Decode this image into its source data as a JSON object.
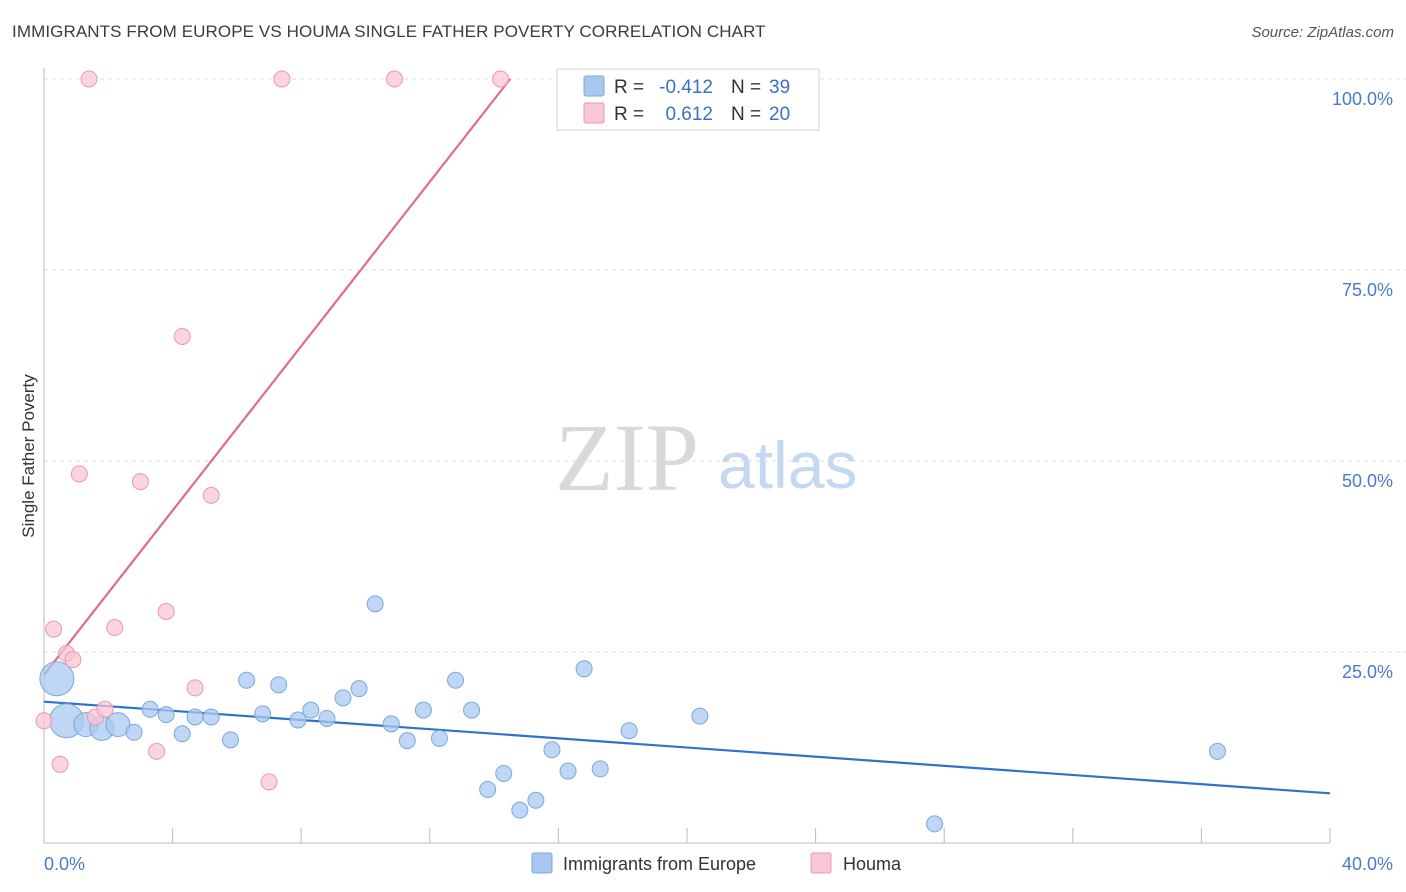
{
  "title": "IMMIGRANTS FROM EUROPE VS HOUMA SINGLE FATHER POVERTY CORRELATION CHART",
  "source": "Source: ZipAtlas.com",
  "watermark": {
    "zip": "ZIP",
    "atlas": "atlas"
  },
  "chart_data": {
    "type": "scatter",
    "title": "IMMIGRANTS FROM EUROPE VS HOUMA SINGLE FATHER POVERTY CORRELATION CHART",
    "xlabel": "",
    "ylabel": "Single Father Poverty",
    "xlim": [
      0,
      40
    ],
    "ylim": [
      0,
      100
    ],
    "x_tick_labels": [
      "0.0%",
      "40.0%"
    ],
    "y_ticks": [
      25,
      50,
      75,
      100
    ],
    "y_tick_labels": [
      "25.0%",
      "50.0%",
      "75.0%",
      "100.0%"
    ],
    "grid": true,
    "legend_position": "top-center",
    "series": [
      {
        "name": "Immigrants from Europe",
        "color": "#a9c8f0",
        "stroke": "#7aa8e0",
        "line_color": "#2f72c9",
        "R": "-0.412",
        "N": "39",
        "trend": {
          "x": [
            0,
            40
          ],
          "y": [
            18.5,
            6.5
          ]
        },
        "points": [
          {
            "x": 0.4,
            "y": 21.5,
            "s": 3
          },
          {
            "x": 0.7,
            "y": 16.0,
            "s": 3
          },
          {
            "x": 1.3,
            "y": 15.5,
            "s": 2
          },
          {
            "x": 1.8,
            "y": 15.0,
            "s": 2
          },
          {
            "x": 2.3,
            "y": 15.5,
            "s": 2
          },
          {
            "x": 2.8,
            "y": 14.5,
            "s": 1
          },
          {
            "x": 3.3,
            "y": 17.5,
            "s": 1
          },
          {
            "x": 3.8,
            "y": 16.8,
            "s": 1
          },
          {
            "x": 4.3,
            "y": 14.3,
            "s": 1
          },
          {
            "x": 4.7,
            "y": 16.5,
            "s": 1
          },
          {
            "x": 5.2,
            "y": 16.5,
            "s": 1
          },
          {
            "x": 5.8,
            "y": 13.5,
            "s": 1
          },
          {
            "x": 6.3,
            "y": 21.3,
            "s": 1
          },
          {
            "x": 6.8,
            "y": 16.9,
            "s": 1
          },
          {
            "x": 7.3,
            "y": 20.7,
            "s": 1
          },
          {
            "x": 7.9,
            "y": 16.1,
            "s": 1
          },
          {
            "x": 8.3,
            "y": 17.4,
            "s": 1
          },
          {
            "x": 8.8,
            "y": 16.3,
            "s": 1
          },
          {
            "x": 9.3,
            "y": 19.0,
            "s": 1
          },
          {
            "x": 9.8,
            "y": 20.2,
            "s": 1
          },
          {
            "x": 10.3,
            "y": 31.3,
            "s": 1
          },
          {
            "x": 10.8,
            "y": 15.6,
            "s": 1
          },
          {
            "x": 11.3,
            "y": 13.4,
            "s": 1
          },
          {
            "x": 11.8,
            "y": 17.4,
            "s": 1
          },
          {
            "x": 12.3,
            "y": 13.7,
            "s": 1
          },
          {
            "x": 12.8,
            "y": 21.3,
            "s": 1
          },
          {
            "x": 13.3,
            "y": 17.4,
            "s": 1
          },
          {
            "x": 13.8,
            "y": 7.0,
            "s": 1
          },
          {
            "x": 14.3,
            "y": 9.1,
            "s": 1
          },
          {
            "x": 14.8,
            "y": 4.3,
            "s": 1
          },
          {
            "x": 15.3,
            "y": 5.6,
            "s": 1
          },
          {
            "x": 15.8,
            "y": 12.2,
            "s": 1
          },
          {
            "x": 16.3,
            "y": 9.4,
            "s": 1
          },
          {
            "x": 16.8,
            "y": 22.8,
            "s": 1
          },
          {
            "x": 17.3,
            "y": 9.7,
            "s": 1
          },
          {
            "x": 18.2,
            "y": 14.7,
            "s": 1
          },
          {
            "x": 20.4,
            "y": 16.6,
            "s": 1
          },
          {
            "x": 27.7,
            "y": 2.5,
            "s": 1
          },
          {
            "x": 36.5,
            "y": 12.0,
            "s": 1
          }
        ]
      },
      {
        "name": "Houma",
        "color": "#f8c6d4",
        "stroke": "#ec98b0",
        "line_color": "#e06a92",
        "R": "0.612",
        "N": "20",
        "trend": {
          "x": [
            0.0,
            14.5
          ],
          "y": [
            22.0,
            100.0
          ]
        },
        "points": [
          {
            "x": 0.0,
            "y": 16.0,
            "s": 1
          },
          {
            "x": 0.3,
            "y": 28.0,
            "s": 1
          },
          {
            "x": 0.5,
            "y": 10.3,
            "s": 1
          },
          {
            "x": 0.7,
            "y": 24.8,
            "s": 1
          },
          {
            "x": 0.9,
            "y": 24.0,
            "s": 1
          },
          {
            "x": 1.1,
            "y": 48.3,
            "s": 1
          },
          {
            "x": 1.4,
            "y": 100.0,
            "s": 1
          },
          {
            "x": 1.6,
            "y": 16.5,
            "s": 1
          },
          {
            "x": 1.9,
            "y": 17.5,
            "s": 1
          },
          {
            "x": 2.2,
            "y": 28.2,
            "s": 1
          },
          {
            "x": 3.0,
            "y": 47.3,
            "s": 1
          },
          {
            "x": 3.5,
            "y": 12.0,
            "s": 1
          },
          {
            "x": 3.8,
            "y": 30.3,
            "s": 1
          },
          {
            "x": 4.3,
            "y": 66.3,
            "s": 1
          },
          {
            "x": 4.7,
            "y": 20.3,
            "s": 1
          },
          {
            "x": 5.2,
            "y": 45.5,
            "s": 1
          },
          {
            "x": 7.0,
            "y": 8.0,
            "s": 1
          },
          {
            "x": 7.4,
            "y": 100.0,
            "s": 1
          },
          {
            "x": 10.9,
            "y": 100.0,
            "s": 1
          },
          {
            "x": 14.2,
            "y": 100.0,
            "s": 1
          }
        ]
      }
    ]
  },
  "legend": {
    "r_label": "R =",
    "n_label": "N ="
  }
}
